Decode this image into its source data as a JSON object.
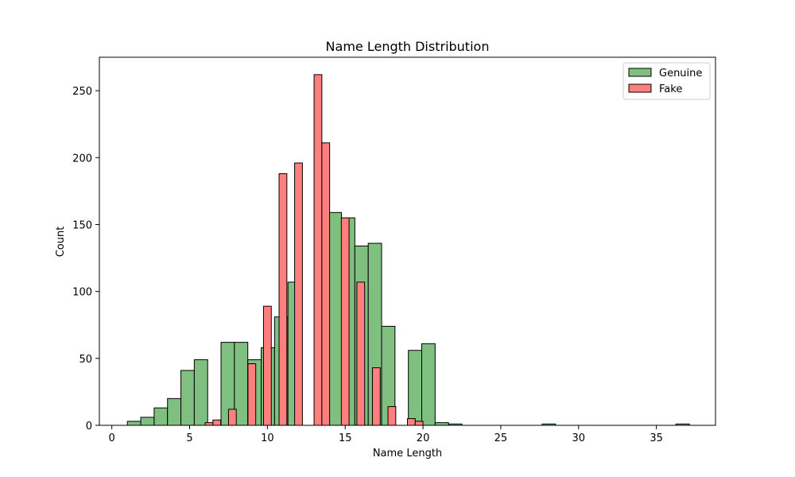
{
  "chart_data": {
    "type": "bar",
    "title": "Name Length Distribution",
    "xlabel": "Name Length",
    "ylabel": "Count",
    "xlim": [
      -0.8,
      38.8
    ],
    "ylim": [
      0,
      275
    ],
    "xticks": [
      0,
      5,
      10,
      15,
      20,
      25,
      30,
      35
    ],
    "yticks": [
      0,
      50,
      100,
      150,
      200,
      250
    ],
    "legend_position": "top-right",
    "series": [
      {
        "name": "Genuine",
        "color": "#7fbf7f",
        "edge": "#000000",
        "bin_width": 0.86,
        "bins": [
          {
            "x": 1.0,
            "value": 3
          },
          {
            "x": 1.86,
            "value": 6
          },
          {
            "x": 2.72,
            "value": 13
          },
          {
            "x": 3.58,
            "value": 20
          },
          {
            "x": 4.44,
            "value": 41
          },
          {
            "x": 5.3,
            "value": 49
          },
          {
            "x": 7.02,
            "value": 62
          },
          {
            "x": 7.88,
            "value": 62
          },
          {
            "x": 8.74,
            "value": 49
          },
          {
            "x": 9.6,
            "value": 58
          },
          {
            "x": 10.46,
            "value": 81
          },
          {
            "x": 11.32,
            "value": 107
          },
          {
            "x": 13.04,
            "value": 150
          },
          {
            "x": 13.9,
            "value": 159
          },
          {
            "x": 14.76,
            "value": 155
          },
          {
            "x": 15.62,
            "value": 134
          },
          {
            "x": 16.48,
            "value": 136
          },
          {
            "x": 17.34,
            "value": 74
          },
          {
            "x": 19.06,
            "value": 56
          },
          {
            "x": 19.92,
            "value": 61
          },
          {
            "x": 20.78,
            "value": 2
          },
          {
            "x": 21.64,
            "value": 1
          },
          {
            "x": 27.66,
            "value": 1
          },
          {
            "x": 36.26,
            "value": 1
          }
        ]
      },
      {
        "name": "Fake",
        "color": "#ff7f7f",
        "edge": "#000000",
        "bin_width": 0.5,
        "bins": [
          {
            "x": 6.0,
            "value": 2
          },
          {
            "x": 6.5,
            "value": 4
          },
          {
            "x": 7.5,
            "value": 12
          },
          {
            "x": 8.75,
            "value": 46
          },
          {
            "x": 9.75,
            "value": 89
          },
          {
            "x": 10.75,
            "value": 188
          },
          {
            "x": 11.75,
            "value": 196
          },
          {
            "x": 13.0,
            "value": 262
          },
          {
            "x": 13.5,
            "value": 211
          },
          {
            "x": 14.75,
            "value": 155
          },
          {
            "x": 15.75,
            "value": 107
          },
          {
            "x": 16.75,
            "value": 43
          },
          {
            "x": 17.75,
            "value": 14
          },
          {
            "x": 19.0,
            "value": 5
          },
          {
            "x": 19.5,
            "value": 3
          }
        ]
      }
    ]
  }
}
